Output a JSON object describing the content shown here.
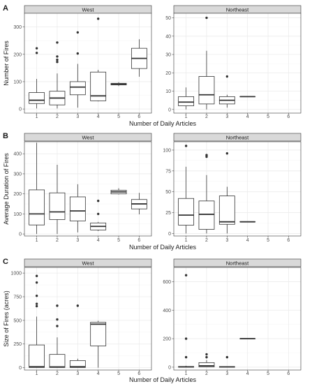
{
  "colors": {
    "panel_bg": "#ffffff",
    "panel_border": "#333333",
    "strip_bg": "#d9d9d9",
    "grid_major": "#ebebeb",
    "grid_minor": "#f5f5f5",
    "box_fill": "#ffffff",
    "box_line": "#333333",
    "text": "#1a1a1a",
    "tick_text": "#4d4d4d"
  },
  "chart_data": [
    {
      "type": "boxplot",
      "panel_label": "A",
      "xlabel": "Number of Daily Articles",
      "ylabel": "Number of Fires",
      "categories": [
        "1",
        "2",
        "3",
        "4",
        "5",
        "6"
      ],
      "facets": [
        {
          "name": "West",
          "ylim": [
            -15,
            350
          ],
          "yticks": [
            0,
            100,
            200,
            300
          ],
          "boxes": [
            {
              "x": "1",
              "whisker_low": 2,
              "q1": 20,
              "median": 32,
              "q3": 60,
              "whisker_high": 110,
              "outliers": [
                205,
                222
              ]
            },
            {
              "x": "2",
              "whisker_low": 2,
              "q1": 15,
              "median": 40,
              "q3": 65,
              "whisker_high": 130,
              "outliers": [
                172,
                180,
                192,
                243
              ]
            },
            {
              "x": "3",
              "whisker_low": 5,
              "q1": 52,
              "median": 80,
              "q3": 100,
              "whisker_high": 165,
              "outliers": [
                203,
                280
              ]
            },
            {
              "x": "4",
              "whisker_low": 28,
              "q1": 30,
              "median": 48,
              "q3": 135,
              "whisker_high": 143,
              "outliers": [
                330
              ]
            },
            {
              "x": "5",
              "whisker_low": 84,
              "q1": 88,
              "median": 91,
              "q3": 94,
              "whisker_high": 98,
              "outliers": []
            },
            {
              "x": "6",
              "whisker_low": 118,
              "q1": 148,
              "median": 185,
              "q3": 222,
              "whisker_high": 255,
              "outliers": []
            }
          ]
        },
        {
          "name": "Northeast",
          "ylim": [
            -2,
            52.5
          ],
          "yticks": [
            0,
            10,
            20,
            30,
            40,
            50
          ],
          "boxes": [
            {
              "x": "1",
              "whisker_low": 0,
              "q1": 2,
              "median": 4,
              "q3": 7,
              "whisker_high": 12,
              "outliers": []
            },
            {
              "x": "2",
              "whisker_low": 0,
              "q1": 3,
              "median": 8,
              "q3": 18,
              "whisker_high": 32,
              "outliers": [
                50
              ]
            },
            {
              "x": "3",
              "whisker_low": 1,
              "q1": 3,
              "median": 5,
              "q3": 7,
              "whisker_high": 8,
              "outliers": [
                18
              ]
            },
            {
              "x": "4",
              "whisker_low": 7,
              "q1": 7,
              "median": 7,
              "q3": 7,
              "whisker_high": 7,
              "outliers": []
            }
          ]
        }
      ]
    },
    {
      "type": "boxplot",
      "panel_label": "B",
      "xlabel": "Number of Daily Articles",
      "ylabel": "Average Duration of Fires",
      "categories": [
        "1",
        "2",
        "3",
        "4",
        "5",
        "6"
      ],
      "facets": [
        {
          "name": "West",
          "ylim": [
            -10,
            460
          ],
          "yticks": [
            0,
            100,
            200,
            300,
            400
          ],
          "boxes": [
            {
              "x": "1",
              "whisker_low": 0,
              "q1": 45,
              "median": 100,
              "q3": 220,
              "whisker_high": 455,
              "outliers": []
            },
            {
              "x": "2",
              "whisker_low": 0,
              "q1": 72,
              "median": 110,
              "q3": 205,
              "whisker_high": 345,
              "outliers": []
            },
            {
              "x": "3",
              "whisker_low": 8,
              "q1": 65,
              "median": 115,
              "q3": 185,
              "whisker_high": 248,
              "outliers": []
            },
            {
              "x": "4",
              "whisker_low": 15,
              "q1": 20,
              "median": 38,
              "q3": 55,
              "whisker_high": 60,
              "outliers": [
                100,
                165
              ]
            },
            {
              "x": "5",
              "whisker_low": 197,
              "q1": 200,
              "median": 210,
              "q3": 218,
              "whisker_high": 228,
              "outliers": []
            },
            {
              "x": "6",
              "whisker_low": 98,
              "q1": 125,
              "median": 150,
              "q3": 172,
              "whisker_high": 205,
              "outliers": []
            }
          ]
        },
        {
          "name": "Northeast",
          "ylim": [
            -3,
            110
          ],
          "yticks": [
            0,
            25,
            50,
            75,
            100
          ],
          "boxes": [
            {
              "x": "1",
              "whisker_low": 0,
              "q1": 10,
              "median": 22,
              "q3": 42,
              "whisker_high": 80,
              "outliers": [
                105
              ]
            },
            {
              "x": "2",
              "whisker_low": 0,
              "q1": 5,
              "median": 23,
              "q3": 39,
              "whisker_high": 70,
              "outliers": [
                92,
                94
              ]
            },
            {
              "x": "3",
              "whisker_low": 0,
              "q1": 11,
              "median": 14,
              "q3": 45,
              "whisker_high": 56,
              "outliers": [
                96
              ]
            },
            {
              "x": "4",
              "whisker_low": 14,
              "q1": 14,
              "median": 14,
              "q3": 14,
              "whisker_high": 14,
              "outliers": []
            }
          ]
        }
      ]
    },
    {
      "type": "boxplot",
      "panel_label": "C",
      "xlabel": "Number of Daily Articles",
      "ylabel": "Size of Fires (acres)",
      "categories": [
        "1",
        "2",
        "3",
        "4",
        "5",
        "6"
      ],
      "facets": [
        {
          "name": "West",
          "ylim": [
            -25,
            1060
          ],
          "yticks": [
            0,
            250,
            500,
            750,
            1000
          ],
          "boxes": [
            {
              "x": "1",
              "whisker_low": 0,
              "q1": 2,
              "median": 10,
              "q3": 240,
              "whisker_high": 540,
              "outliers": [
                650,
                675,
                760,
                900,
                970
              ]
            },
            {
              "x": "2",
              "whisker_low": 0,
              "q1": 2,
              "median": 8,
              "q3": 140,
              "whisker_high": 320,
              "outliers": [
                440,
                510,
                655
              ]
            },
            {
              "x": "3",
              "whisker_low": 0,
              "q1": 2,
              "median": 10,
              "q3": 75,
              "whisker_high": 95,
              "outliers": [
                655
              ]
            },
            {
              "x": "4",
              "whisker_low": 0,
              "q1": 230,
              "median": 460,
              "q3": 480,
              "whisker_high": 495,
              "outliers": []
            }
          ]
        },
        {
          "name": "Northeast",
          "ylim": [
            -20,
            700
          ],
          "yticks": [
            0,
            200,
            400,
            600
          ],
          "boxes": [
            {
              "x": "1",
              "whisker_low": 0,
              "q1": 0,
              "median": 2,
              "q3": 5,
              "whisker_high": 10,
              "outliers": [
                70,
                200,
                645
              ]
            },
            {
              "x": "2",
              "whisker_low": 0,
              "q1": 2,
              "median": 10,
              "q3": 32,
              "whisker_high": 50,
              "outliers": [
                70,
                90
              ]
            },
            {
              "x": "3",
              "whisker_low": 0,
              "q1": 0,
              "median": 2,
              "q3": 4,
              "whisker_high": 5,
              "outliers": [
                70
              ]
            },
            {
              "x": "4",
              "whisker_low": 200,
              "q1": 200,
              "median": 200,
              "q3": 200,
              "whisker_high": 200,
              "outliers": []
            }
          ]
        }
      ]
    }
  ]
}
